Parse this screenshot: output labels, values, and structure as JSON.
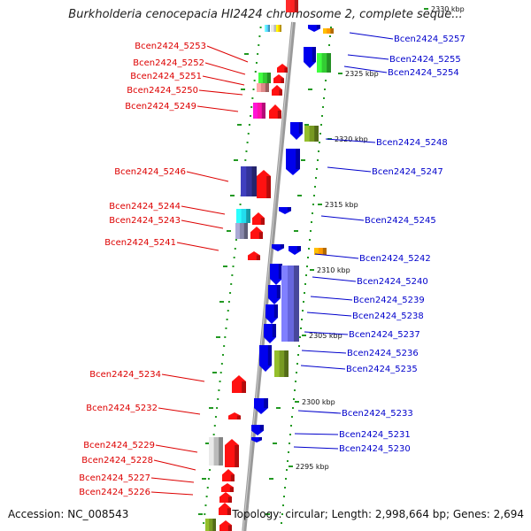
{
  "title": "Burkholderia cenocepacia HI2424 chromosome 2, complete seque...",
  "accession": "Accession: NC_008543",
  "summary": "Topology: circular; Length: 2,998,664 bp; Genes: 2,694",
  "colors": {
    "left_label": "#dd0000",
    "right_label": "#0000cc",
    "backbone": "#888888",
    "dots": "#229922"
  },
  "scale_ticks": [
    "2330 kbp",
    "2325 kbp",
    "2320 kbp",
    "2315 kbp",
    "2310 kbp",
    "2305 kbp",
    "2300 kbp",
    "2295 kbp"
  ],
  "left_genes": [
    "Bcen2424_5253",
    "Bcen2424_5252",
    "Bcen2424_5251",
    "Bcen2424_5250",
    "Bcen2424_5249",
    "Bcen2424_5246",
    "Bcen2424_5244",
    "Bcen2424_5243",
    "Bcen2424_5241",
    "Bcen2424_5234",
    "Bcen2424_5232",
    "Bcen2424_5229",
    "Bcen2424_5228",
    "Bcen2424_5227",
    "Bcen2424_5226"
  ],
  "right_genes": [
    "Bcen2424_5257",
    "Bcen2424_5255",
    "Bcen2424_5254",
    "Bcen2424_5248",
    "Bcen2424_5247",
    "Bcen2424_5245",
    "Bcen2424_5242",
    "Bcen2424_5240",
    "Bcen2424_5239",
    "Bcen2424_5238",
    "Bcen2424_5237",
    "Bcen2424_5236",
    "Bcen2424_5235",
    "Bcen2424_5233",
    "Bcen2424_5231",
    "Bcen2424_5230"
  ]
}
